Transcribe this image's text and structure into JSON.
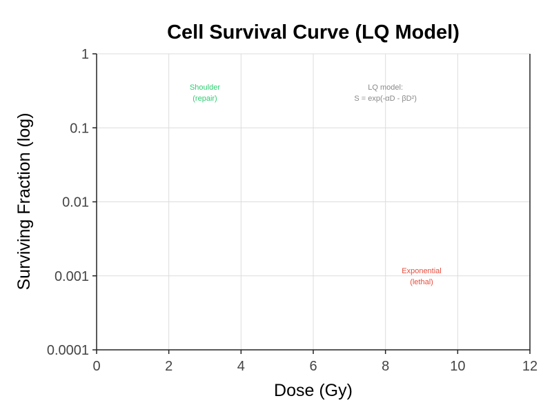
{
  "chart_data": {
    "type": "line",
    "title": "Cell Survival Curve (LQ Model)",
    "xlabel": "Dose (Gy)",
    "ylabel": "Surviving Fraction (log)",
    "xlim": [
      0,
      12
    ],
    "ylim": [
      0.0001,
      1
    ],
    "yscale": "log",
    "grid": true,
    "x_ticks": [
      0,
      2,
      4,
      6,
      8,
      10,
      12
    ],
    "x_tick_labels": [
      "0",
      "2",
      "4",
      "6",
      "8",
      "10",
      "12"
    ],
    "y_ticks": [
      0.0001,
      0.001,
      0.01,
      0.1,
      1
    ],
    "y_tick_labels": [
      "0.0001",
      "0.001",
      "0.01",
      "0.1",
      "1"
    ],
    "series": [],
    "annotations": [
      {
        "lines": [
          "Shoulder",
          "(repair)"
        ],
        "x": 3,
        "y": 0.3,
        "color": "#2ecc71"
      },
      {
        "lines": [
          "LQ model:",
          "S = exp(-αD - βD²)"
        ],
        "x": 8,
        "y": 0.3,
        "color": "#888888"
      },
      {
        "lines": [
          "Exponential",
          "(lethal)"
        ],
        "x": 9,
        "y": 0.001,
        "color": "#e74c3c"
      }
    ]
  }
}
